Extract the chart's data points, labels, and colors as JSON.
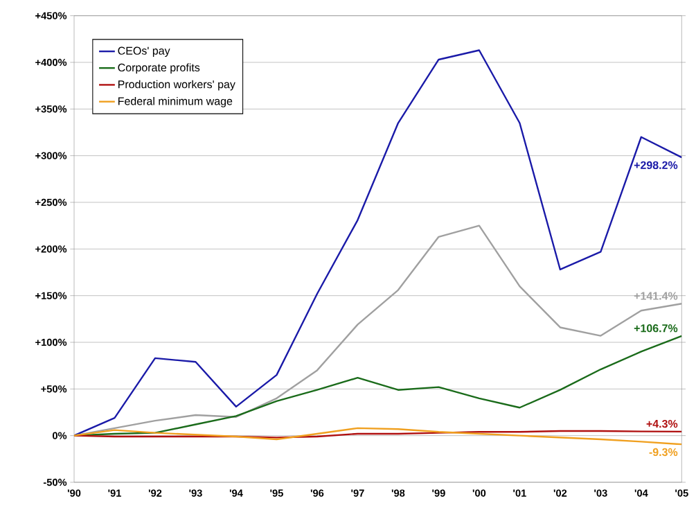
{
  "chart_data": {
    "type": "line",
    "categories": [
      "'90",
      "'91",
      "'92",
      "'93",
      "'94",
      "'95",
      "'96",
      "'97",
      "'98",
      "'99",
      "'00",
      "'01",
      "'02",
      "'03",
      "'04",
      "'05"
    ],
    "ylim": [
      -50,
      450
    ],
    "yticks": [
      {
        "value": -50,
        "label": "-50%"
      },
      {
        "value": 0,
        "label": "0%"
      },
      {
        "value": 50,
        "label": "+50%"
      },
      {
        "value": 100,
        "label": "+100%"
      },
      {
        "value": 150,
        "label": "+150%"
      },
      {
        "value": 200,
        "label": "+200%"
      },
      {
        "value": 250,
        "label": "+250%"
      },
      {
        "value": 300,
        "label": "+300%"
      },
      {
        "value": 350,
        "label": "+350%"
      },
      {
        "value": 400,
        "label": "+400%"
      },
      {
        "value": 450,
        "label": "+450%"
      }
    ],
    "grid": "y",
    "legend": "top left",
    "marker": "none",
    "line_style": "solid",
    "series": [
      {
        "name": "CEOs' pay",
        "color": "#1a1aa8",
        "values": [
          0,
          19,
          83,
          79,
          31,
          65,
          152,
          231,
          335,
          403,
          413,
          335,
          178,
          197,
          320,
          298.2
        ],
        "value_labels": [
          null,
          null,
          null,
          null,
          null,
          null,
          null,
          null,
          null,
          null,
          null,
          null,
          null,
          null,
          null,
          "+298.2%"
        ]
      },
      {
        "color": "#a0a0a0",
        "values": [
          0,
          8,
          16,
          22,
          20,
          40,
          70,
          119,
          156,
          213,
          225,
          160,
          116,
          107,
          134,
          141.4
        ],
        "value_labels": [
          null,
          null,
          null,
          null,
          null,
          null,
          null,
          null,
          null,
          null,
          null,
          null,
          null,
          null,
          null,
          "+141.4%"
        ]
      },
      {
        "name": "Corporate profits",
        "color": "#1a6b1a",
        "values": [
          0,
          2,
          3,
          12,
          21,
          37,
          49,
          62,
          49,
          52,
          40,
          30,
          49,
          71,
          90,
          106.7
        ],
        "value_labels": [
          null,
          null,
          null,
          null,
          null,
          null,
          null,
          null,
          null,
          null,
          null,
          null,
          null,
          null,
          null,
          "+106.7%"
        ]
      },
      {
        "name": "Production workers' pay",
        "color": "#b01010",
        "values": [
          0,
          -1,
          -1,
          -1,
          -1,
          -2,
          -1,
          2,
          2,
          3,
          4,
          4,
          5,
          5,
          4.5,
          4.3
        ],
        "value_labels": [
          null,
          null,
          null,
          null,
          null,
          null,
          null,
          null,
          null,
          null,
          null,
          null,
          null,
          null,
          null,
          "+4.3%"
        ]
      },
      {
        "name": "Federal minimum wage",
        "color": "#f0a020",
        "values": [
          0,
          6,
          3,
          1,
          -1,
          -4,
          2,
          8,
          7,
          4,
          2,
          0,
          -2,
          -4,
          -6.5,
          -9.3
        ],
        "value_labels": [
          null,
          null,
          null,
          null,
          null,
          null,
          null,
          null,
          null,
          null,
          null,
          null,
          null,
          null,
          null,
          "-9.3%"
        ]
      }
    ]
  }
}
